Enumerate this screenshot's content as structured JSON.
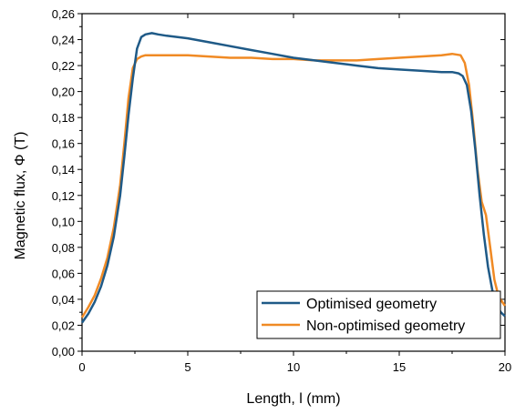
{
  "chart_data": {
    "type": "line",
    "xlabel": "Length, l (mm)",
    "ylabel": "Magnetic flux, Φ (T)",
    "xlim": [
      0,
      20
    ],
    "ylim": [
      0,
      0.26
    ],
    "x_ticks": [
      "0",
      "5",
      "10",
      "15",
      "20"
    ],
    "y_ticks": [
      "0,00",
      "0,02",
      "0,04",
      "0,06",
      "0,08",
      "0,10",
      "0,12",
      "0,14",
      "0,16",
      "0,18",
      "0,20",
      "0,22",
      "0,24",
      "0,26"
    ],
    "grid": false,
    "legend_position": "bottom-right",
    "series": [
      {
        "name": "Optimised geometry",
        "color": "#1f5a87",
        "x": [
          0,
          0.3,
          0.6,
          0.9,
          1.2,
          1.5,
          1.8,
          2.0,
          2.2,
          2.4,
          2.6,
          2.8,
          3.0,
          3.3,
          3.6,
          4,
          5,
          6,
          7,
          8,
          9,
          10,
          11,
          12,
          13,
          14,
          15,
          16,
          17,
          17.5,
          17.8,
          18.0,
          18.2,
          18.4,
          18.6,
          18.8,
          19.0,
          19.2,
          19.4,
          19.6,
          19.8,
          20
        ],
        "y": [
          0.022,
          0.029,
          0.038,
          0.05,
          0.066,
          0.088,
          0.12,
          0.15,
          0.182,
          0.21,
          0.233,
          0.242,
          0.244,
          0.245,
          0.244,
          0.243,
          0.241,
          0.238,
          0.235,
          0.232,
          0.229,
          0.226,
          0.224,
          0.222,
          0.22,
          0.218,
          0.217,
          0.216,
          0.215,
          0.215,
          0.214,
          0.212,
          0.205,
          0.185,
          0.155,
          0.12,
          0.09,
          0.065,
          0.047,
          0.036,
          0.03,
          0.027
        ]
      },
      {
        "name": "Non-optimised geometry",
        "color": "#f08a24",
        "x": [
          0,
          0.3,
          0.6,
          0.9,
          1.2,
          1.5,
          1.8,
          2.0,
          2.2,
          2.4,
          2.6,
          2.8,
          3.0,
          3.5,
          4,
          5,
          6,
          7,
          8,
          9,
          10,
          11,
          12,
          13,
          14,
          15,
          16,
          17,
          17.5,
          17.9,
          18.1,
          18.3,
          18.5,
          18.7,
          18.9,
          19.1,
          19.3,
          19.5,
          19.7,
          20
        ],
        "y": [
          0.026,
          0.034,
          0.043,
          0.056,
          0.072,
          0.095,
          0.128,
          0.16,
          0.195,
          0.218,
          0.225,
          0.227,
          0.228,
          0.228,
          0.228,
          0.228,
          0.227,
          0.226,
          0.226,
          0.225,
          0.225,
          0.224,
          0.224,
          0.224,
          0.225,
          0.226,
          0.227,
          0.228,
          0.229,
          0.228,
          0.222,
          0.205,
          0.175,
          0.14,
          0.115,
          0.105,
          0.08,
          0.055,
          0.042,
          0.035
        ]
      }
    ]
  }
}
